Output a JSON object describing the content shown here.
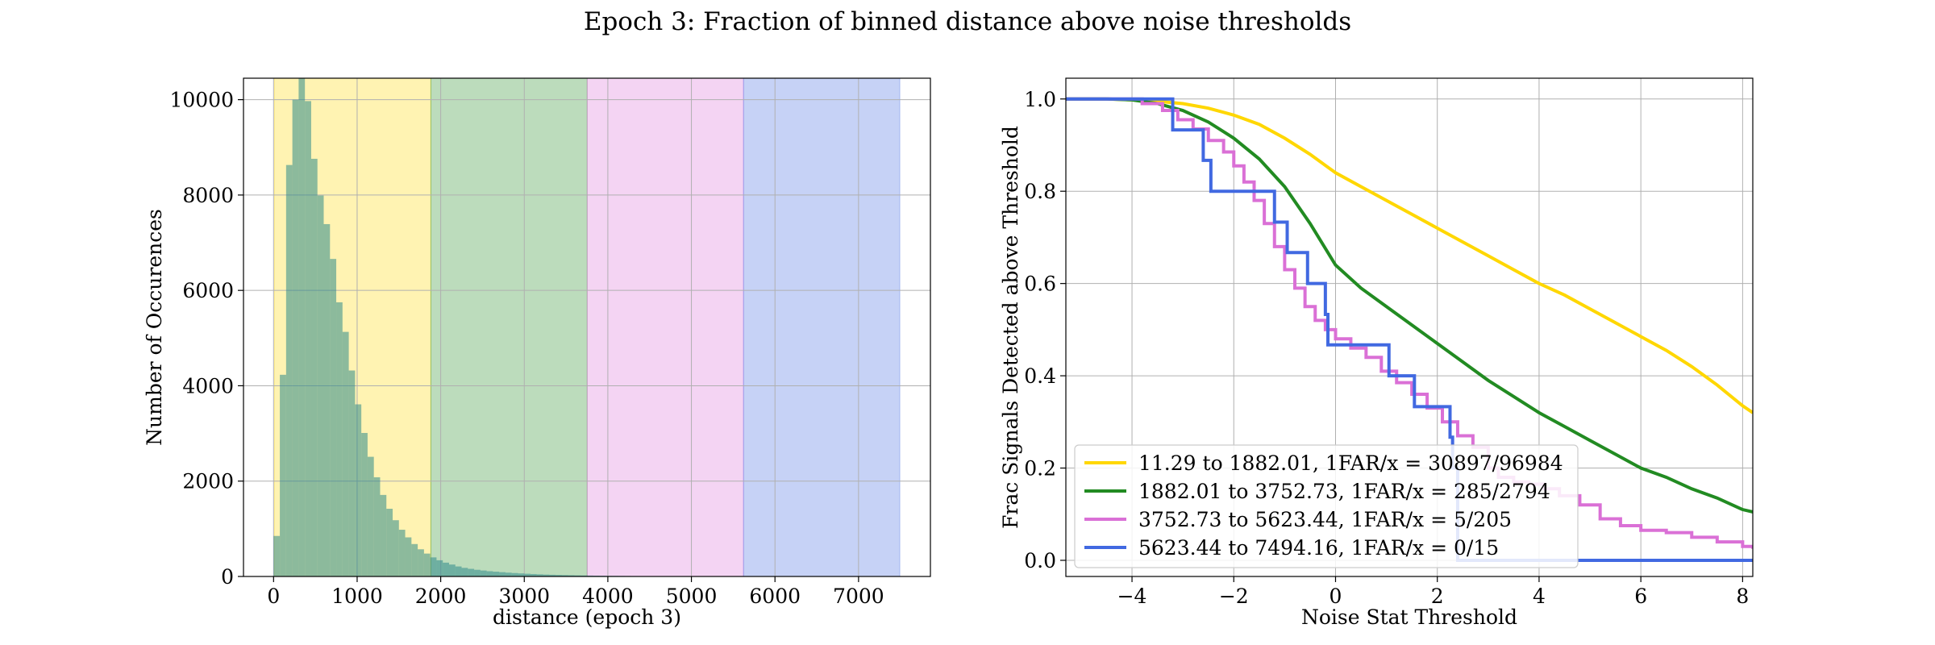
{
  "title": "Epoch 3: Fraction of binned distance above noise thresholds",
  "chart_data": [
    {
      "type": "bar",
      "xlabel": "distance (epoch 3)",
      "ylabel": "Number of Occurences",
      "xlim": [
        -360,
        7860
      ],
      "ylim": [
        0,
        10450
      ],
      "xticks": [
        0,
        1000,
        2000,
        3000,
        4000,
        5000,
        6000,
        7000
      ],
      "yticks": [
        0,
        2000,
        4000,
        6000,
        8000,
        10000
      ],
      "grid": true,
      "shaded_bins": [
        {
          "from": 11.29,
          "to": 1882.01,
          "color": "#FFD700"
        },
        {
          "from": 1882.01,
          "to": 3752.73,
          "color": "#228B22"
        },
        {
          "from": 3752.73,
          "to": 5623.44,
          "color": "#DA70D6"
        },
        {
          "from": 5623.44,
          "to": 7494.16,
          "color": "#4169E1"
        }
      ],
      "hist_color": "#2E8B8B",
      "bin_width": 75,
      "bin_start": 0,
      "counts": [
        850,
        4230,
        8630,
        10000,
        10450,
        9970,
        8760,
        7990,
        7390,
        6660,
        5750,
        5130,
        4320,
        3610,
        3010,
        2510,
        2080,
        1710,
        1420,
        1180,
        980,
        820,
        680,
        570,
        480,
        400,
        340,
        290,
        250,
        210,
        180,
        160,
        140,
        125,
        110,
        100,
        90,
        80,
        72,
        64,
        57,
        51,
        45,
        40,
        36,
        32,
        29,
        26,
        23,
        21,
        19,
        17,
        15,
        13,
        12,
        11,
        10,
        9,
        8,
        7,
        6,
        6,
        5,
        5,
        4,
        4,
        3,
        3,
        3,
        2,
        2,
        2,
        2,
        2,
        2,
        1,
        1,
        1,
        1,
        1,
        1,
        1,
        1,
        1,
        1,
        1,
        1,
        1,
        1,
        1,
        1,
        1,
        1,
        1,
        1,
        1,
        1,
        1,
        1,
        1
      ]
    },
    {
      "type": "line",
      "xlabel": "Noise Stat Threshold",
      "ylabel": "Frac Signals Detected above Threshold",
      "xlim": [
        -5.3,
        8.2
      ],
      "ylim": [
        -0.035,
        1.045
      ],
      "xticks": [
        -4,
        -2,
        0,
        2,
        4,
        6,
        8
      ],
      "yticks": [
        0.0,
        0.2,
        0.4,
        0.6,
        0.8,
        1.0
      ],
      "ytick_labels": [
        "0.0",
        "0.2",
        "0.4",
        "0.6",
        "0.8",
        "1.0"
      ],
      "grid": true,
      "legend_position": "lower-left",
      "series": [
        {
          "name": "11.29 to 1882.01, 1FAR/x = 30897/96984",
          "color": "#FFD700",
          "step": false,
          "x": [
            -5.3,
            -4.5,
            -4,
            -3.5,
            -3,
            -2.5,
            -2,
            -1.5,
            -1,
            -0.5,
            0,
            0.5,
            1,
            1.5,
            2,
            2.5,
            3,
            3.5,
            4,
            4.5,
            5,
            5.5,
            6,
            6.5,
            7,
            7.5,
            8,
            8.2
          ],
          "y": [
            1.0,
            1.0,
            0.998,
            0.995,
            0.99,
            0.98,
            0.965,
            0.945,
            0.915,
            0.88,
            0.84,
            0.81,
            0.78,
            0.75,
            0.72,
            0.69,
            0.66,
            0.63,
            0.6,
            0.575,
            0.545,
            0.515,
            0.485,
            0.455,
            0.42,
            0.38,
            0.335,
            0.32
          ]
        },
        {
          "name": "1882.01 to 3752.73, 1FAR/x = 285/2794",
          "color": "#228B22",
          "step": false,
          "x": [
            -5.3,
            -4.5,
            -4,
            -3.5,
            -3,
            -2.5,
            -2,
            -1.5,
            -1,
            -0.5,
            0,
            0.5,
            1,
            1.5,
            2,
            2.5,
            3,
            3.5,
            4,
            4.5,
            5,
            5.5,
            6,
            6.5,
            7,
            7.5,
            8,
            8.2
          ],
          "y": [
            1.0,
            1.0,
            0.998,
            0.99,
            0.975,
            0.95,
            0.915,
            0.87,
            0.81,
            0.73,
            0.64,
            0.59,
            0.55,
            0.51,
            0.47,
            0.43,
            0.39,
            0.355,
            0.32,
            0.29,
            0.26,
            0.23,
            0.2,
            0.18,
            0.155,
            0.135,
            0.11,
            0.105
          ]
        },
        {
          "name": "3752.73 to 5623.44, 1FAR/x = 5/205",
          "color": "#DA70D6",
          "step": true,
          "x": [
            -5.3,
            -4.2,
            -3.8,
            -3.4,
            -3.1,
            -2.8,
            -2.5,
            -2.2,
            -2.0,
            -1.8,
            -1.6,
            -1.4,
            -1.2,
            -1.0,
            -0.8,
            -0.6,
            -0.4,
            -0.2,
            0.0,
            0.3,
            0.6,
            0.9,
            1.2,
            1.5,
            1.8,
            2.1,
            2.4,
            2.7,
            3.0,
            3.2,
            3.5,
            3.8,
            4.1,
            4.4,
            4.8,
            5.2,
            5.6,
            6.0,
            6.5,
            7.0,
            7.5,
            8.0,
            8.2
          ],
          "y": [
            1.0,
            1.0,
            0.99,
            0.975,
            0.955,
            0.935,
            0.91,
            0.885,
            0.855,
            0.82,
            0.78,
            0.73,
            0.68,
            0.63,
            0.59,
            0.55,
            0.52,
            0.5,
            0.48,
            0.46,
            0.44,
            0.41,
            0.385,
            0.36,
            0.33,
            0.3,
            0.27,
            0.245,
            0.2,
            0.18,
            0.17,
            0.165,
            0.155,
            0.14,
            0.12,
            0.09,
            0.075,
            0.065,
            0.06,
            0.05,
            0.04,
            0.03,
            0.025
          ]
        },
        {
          "name": "5623.44 to 7494.16, 1FAR/x = 0/15",
          "color": "#4169E1",
          "step": true,
          "x": [
            -5.3,
            -3.2,
            -2.6,
            -2.45,
            -1.2,
            -0.95,
            -0.55,
            -0.2,
            -0.15,
            1.05,
            1.55,
            2.25,
            2.3,
            2.4,
            8.2
          ],
          "y": [
            1.0,
            0.933,
            0.867,
            0.8,
            0.733,
            0.667,
            0.6,
            0.533,
            0.467,
            0.4,
            0.333,
            0.267,
            0.2,
            0.0,
            0.0
          ]
        }
      ]
    }
  ]
}
